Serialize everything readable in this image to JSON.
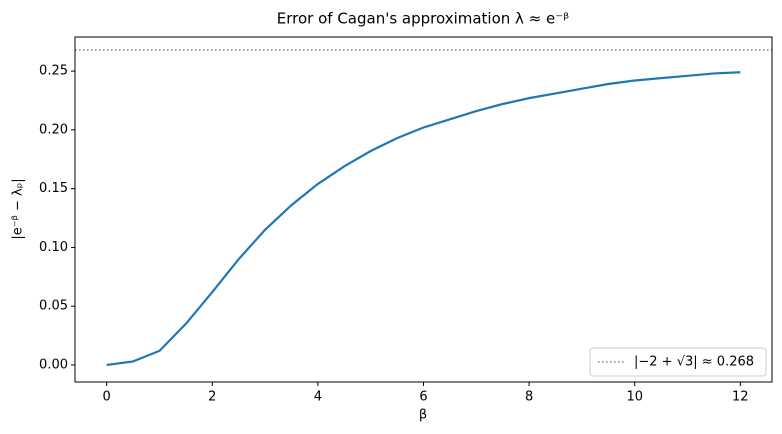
{
  "chart_data": {
    "type": "line",
    "title": "Error of Cagan's approximation λ ≈ e⁻ᵝ",
    "xlabel": "β",
    "ylabel": "|e⁻ᵝ − λₚ|",
    "x": [
      0,
      0.5,
      1,
      1.5,
      2,
      2.5,
      3,
      3.5,
      4,
      4.5,
      5,
      5.5,
      6,
      6.5,
      7,
      7.5,
      8,
      8.5,
      9,
      9.5,
      10,
      10.5,
      11,
      11.5,
      12
    ],
    "series": [
      {
        "color": "#1f77b4",
        "values": [
          0,
          0.003,
          0.012,
          0.035,
          0.062,
          0.09,
          0.115,
          0.136,
          0.154,
          0.169,
          0.182,
          0.193,
          0.202,
          0.209,
          0.216,
          0.222,
          0.227,
          0.231,
          0.235,
          0.239,
          0.242,
          0.244,
          0.246,
          0.248,
          0.249
        ]
      }
    ],
    "hlines": [
      {
        "value": 0.268,
        "label": "|−2 + √3| ≈ 0.268",
        "color": "#808080",
        "style": "dotted"
      }
    ],
    "xlim": [
      -0.6,
      12.6
    ],
    "ylim": [
      -0.0145,
      0.279
    ],
    "xticks": [
      0,
      2,
      4,
      6,
      8,
      10,
      12
    ],
    "yticks": [
      {
        "value": 0,
        "label": "0.00"
      },
      {
        "value": 0.05,
        "label": "0.05"
      },
      {
        "value": 0.1,
        "label": "0.10"
      },
      {
        "value": 0.15,
        "label": "0.15"
      },
      {
        "value": 0.2,
        "label": "0.20"
      },
      {
        "value": 0.25,
        "label": "0.25"
      }
    ],
    "legend": "lower right",
    "grid": false
  }
}
